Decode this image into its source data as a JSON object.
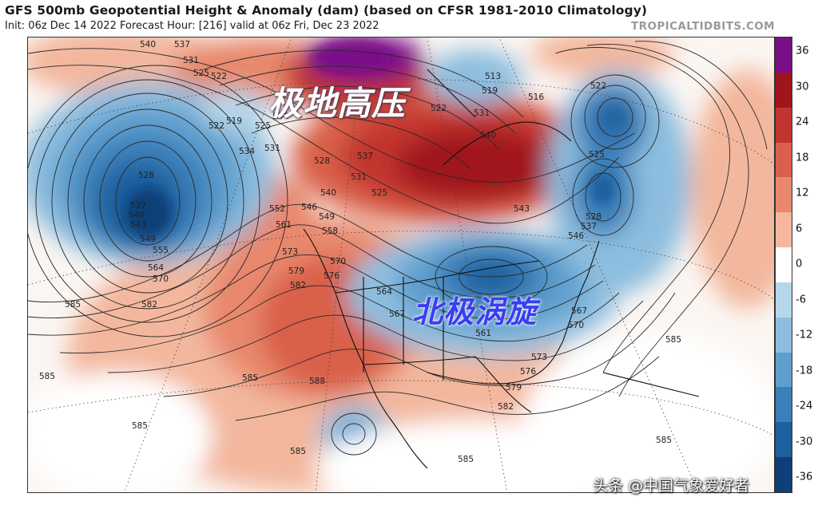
{
  "header": {
    "title": "GFS 500mb Geopotential Height & Anomaly (dam) (based on CFSR 1981-2010 Climatology)",
    "subtitle": "Init: 06z Dec 14 2022   Forecast Hour: [216]   valid at 06z Fri, Dec 23 2022",
    "brand": "TROPICALTIDBITS.COM"
  },
  "colorbar": {
    "labels": [
      "36",
      "30",
      "24",
      "18",
      "12",
      "6",
      "0",
      "-6",
      "-12",
      "-18",
      "-24",
      "-30",
      "-36"
    ],
    "colors": [
      "#7a0f88",
      "#a0141c",
      "#c2342e",
      "#d9604a",
      "#e8886d",
      "#f3b79d",
      "#ffffff",
      "#b6d6ea",
      "#8dbedf",
      "#5f9fce",
      "#3a7fb9",
      "#1e5f9e",
      "#0e3f78"
    ]
  },
  "overlays": {
    "polar_high": "极地高压",
    "polar_vortex": "北极涡旋"
  },
  "watermark": "头条 @中国气象爱好者",
  "contour_labels": [
    "540",
    "537",
    "531",
    "525",
    "522",
    "519",
    "525",
    "534",
    "522",
    "531",
    "534",
    "528",
    "540",
    "546",
    "549",
    "552",
    "558",
    "561",
    "573",
    "579",
    "582",
    "570",
    "576",
    "564",
    "567",
    "561",
    "573",
    "576",
    "579",
    "582",
    "585",
    "588",
    "585",
    "585",
    "582",
    "585",
    "585",
    "585",
    "585",
    "585",
    "528",
    "537",
    "540",
    "543",
    "549",
    "555",
    "564",
    "570",
    "513",
    "519",
    "516",
    "522",
    "525",
    "528",
    "537",
    "546",
    "567",
    "570",
    "522",
    "531",
    "540",
    "543",
    "537",
    "531",
    "525"
  ]
}
